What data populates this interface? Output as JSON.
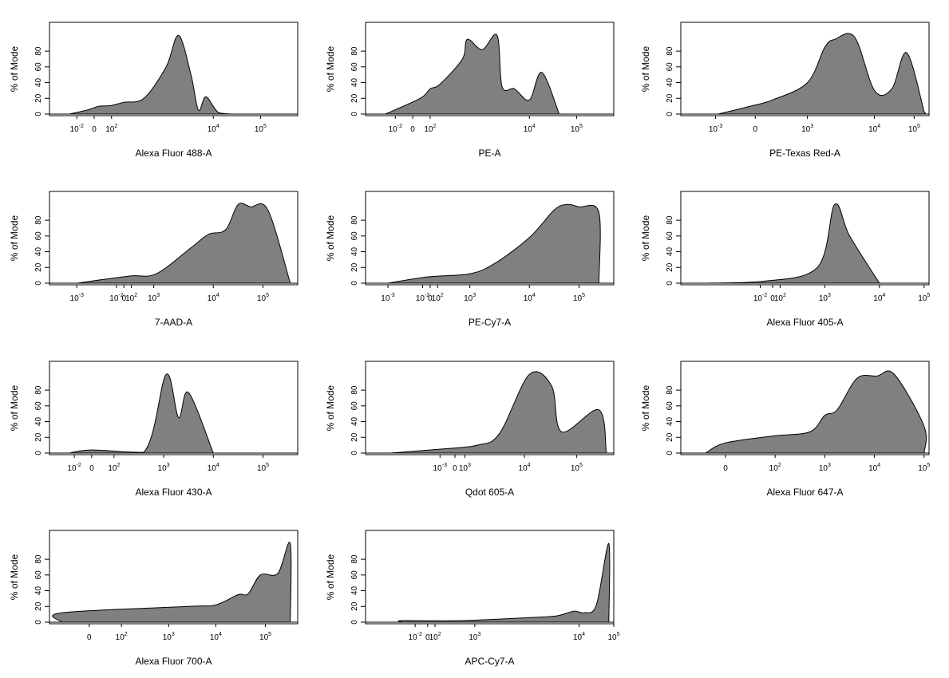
{
  "chart_data": [
    {
      "type": "area",
      "xlabel": "Alexa Fluor 488-A",
      "ylabel": "% of Mode",
      "ylim": [
        0,
        100
      ],
      "yticks": [
        0,
        20,
        40,
        60,
        80
      ],
      "xticks": [
        {
          "label": "10",
          "sup": "-2"
        },
        {
          "label": "0",
          "sup": ""
        },
        {
          "label": "10",
          "sup": "2"
        },
        {
          "label": "10",
          "sup": "4"
        },
        {
          "label": "10",
          "sup": "5"
        }
      ],
      "x": [
        "-1e-2",
        "-5",
        "0",
        "50",
        "100",
        "200",
        "300",
        "500",
        "700",
        "1000",
        "2000",
        "3000",
        "5000",
        "1e4",
        "3e4"
      ],
      "values": [
        0,
        5,
        8,
        10,
        11,
        15,
        20,
        60,
        100,
        50,
        5,
        22,
        2,
        0,
        0
      ]
    },
    {
      "type": "area",
      "xlabel": "PE-A",
      "ylabel": "% of Mode",
      "ylim": [
        0,
        100
      ],
      "yticks": [
        0,
        20,
        40,
        60,
        80
      ],
      "xticks": [
        {
          "label": "10",
          "sup": "-2"
        },
        {
          "label": "0",
          "sup": ""
        },
        {
          "label": "10",
          "sup": "2"
        },
        {
          "label": "10",
          "sup": "4"
        },
        {
          "label": "10",
          "sup": "5"
        }
      ],
      "x": [
        "-1e-2",
        "0",
        "50",
        "100",
        "300",
        "500",
        "1000",
        "2000",
        "3000",
        "5000",
        "1e4",
        "2e4",
        "5e4"
      ],
      "values": [
        0,
        20,
        32,
        38,
        70,
        95,
        82,
        100,
        35,
        32,
        18,
        53,
        0
      ]
    },
    {
      "type": "area",
      "xlabel": "PE-Texas Red-A",
      "ylabel": "% of Mode",
      "ylim": [
        0,
        100
      ],
      "yticks": [
        0,
        20,
        40,
        60,
        80
      ],
      "xticks": [
        {
          "label": "10",
          "sup": "-3"
        },
        {
          "label": "0",
          "sup": ""
        },
        {
          "label": "10",
          "sup": "3"
        },
        {
          "label": "10",
          "sup": "4"
        },
        {
          "label": "10",
          "sup": "5"
        }
      ],
      "x": [
        "-1e-2",
        "0",
        "100",
        "1000",
        "3000",
        "5000",
        "1e4",
        "2e4",
        "5e4",
        "1e5",
        "2e5"
      ],
      "values": [
        0,
        10,
        18,
        40,
        85,
        95,
        98,
        30,
        32,
        78,
        3
      ]
    },
    {
      "type": "area",
      "xlabel": "7-AAD-A",
      "ylabel": "% of Mode",
      "ylim": [
        0,
        100
      ],
      "yticks": [
        0,
        20,
        40,
        60,
        80
      ],
      "xticks": [
        {
          "label": "10",
          "sup": "-3"
        },
        {
          "label": "10",
          "sup": "-2"
        },
        {
          "label": "0",
          "sup": ""
        },
        {
          "label": "10",
          "sup": "2"
        },
        {
          "label": "10",
          "sup": "3"
        },
        {
          "label": "10",
          "sup": "4"
        },
        {
          "label": "10",
          "sup": "5"
        }
      ],
      "x": [
        "-1e-3",
        "0",
        "1000",
        "5000",
        "8000",
        "2e4",
        "3e4",
        "5e4",
        "1.5e5",
        "3e5"
      ],
      "values": [
        0,
        9,
        12,
        45,
        62,
        68,
        100,
        97,
        93,
        0
      ]
    },
    {
      "type": "area",
      "xlabel": "PE-Cy7-A",
      "ylabel": "% of Mode",
      "ylim": [
        0,
        100
      ],
      "yticks": [
        0,
        20,
        40,
        60,
        80
      ],
      "xticks": [
        {
          "label": "10",
          "sup": "-3"
        },
        {
          "label": "10",
          "sup": "-2"
        },
        {
          "label": "0",
          "sup": ""
        },
        {
          "label": "10",
          "sup": "2"
        },
        {
          "label": "10",
          "sup": "3"
        },
        {
          "label": "10",
          "sup": "4"
        },
        {
          "label": "10",
          "sup": "5"
        }
      ],
      "x": [
        "-1e-3",
        "0",
        "1000",
        "5000",
        "1e4",
        "2.5e4",
        "4e4",
        "6e4",
        "2e5"
      ],
      "values": [
        0,
        8,
        12,
        25,
        58,
        93,
        100,
        97,
        90
      ]
    },
    {
      "type": "area",
      "xlabel": "Alexa Fluor 405-A",
      "ylabel": "% of Mode",
      "ylim": [
        0,
        100
      ],
      "yticks": [
        0,
        20,
        40,
        60,
        80
      ],
      "xticks": [
        {
          "label": "10",
          "sup": "-2"
        },
        {
          "label": "0",
          "sup": ""
        },
        {
          "label": "10",
          "sup": "2"
        },
        {
          "label": "10",
          "sup": "3"
        },
        {
          "label": "10",
          "sup": "4"
        },
        {
          "label": "10",
          "sup": "5"
        }
      ],
      "x": [
        "-1e-2",
        "0",
        "1000",
        "2000",
        "2500",
        "5000"
      ],
      "values": [
        0,
        2,
        20,
        100,
        60,
        0
      ]
    },
    {
      "type": "area",
      "xlabel": "Alexa Fluor 430-A",
      "ylabel": "% of Mode",
      "ylim": [
        0,
        100
      ],
      "yticks": [
        0,
        20,
        40,
        60,
        80
      ],
      "xticks": [
        {
          "label": "10",
          "sup": "-2"
        },
        {
          "label": "0",
          "sup": ""
        },
        {
          "label": "10",
          "sup": "2"
        },
        {
          "label": "10",
          "sup": "3"
        },
        {
          "label": "10",
          "sup": "4"
        },
        {
          "label": "10",
          "sup": "5"
        }
      ],
      "x": [
        "-1e-2",
        "0",
        "100",
        "800",
        "1200",
        "2000",
        "5000"
      ],
      "values": [
        0,
        4,
        1,
        100,
        45,
        77,
        0
      ]
    },
    {
      "type": "area",
      "xlabel": "Qdot 605-A",
      "ylabel": "% of Mode",
      "ylim": [
        0,
        100
      ],
      "yticks": [
        0,
        20,
        40,
        60,
        80
      ],
      "xticks": [
        {
          "label": "10",
          "sup": "-3"
        },
        {
          "label": "0",
          "sup": ""
        },
        {
          "label": "10",
          "sup": "3"
        },
        {
          "label": "10",
          "sup": "4"
        },
        {
          "label": "10",
          "sup": "5"
        }
      ],
      "x": [
        "-1e-3",
        "0",
        "1000",
        "5000",
        "1.5e4",
        "3e4",
        "5e4",
        "2e5",
        "3e5"
      ],
      "values": [
        0,
        5,
        10,
        25,
        100,
        85,
        27,
        55,
        0
      ]
    },
    {
      "type": "area",
      "xlabel": "Alexa Fluor 647-A",
      "ylabel": "% of Mode",
      "ylim": [
        0,
        100
      ],
      "yticks": [
        0,
        20,
        40,
        60,
        80
      ],
      "xticks": [
        {
          "label": "0",
          "sup": ""
        },
        {
          "label": "10",
          "sup": "2"
        },
        {
          "label": "10",
          "sup": "3"
        },
        {
          "label": "10",
          "sup": "4"
        },
        {
          "label": "10",
          "sup": "5"
        }
      ],
      "x": [
        "-100",
        "0",
        "300",
        "1000",
        "1500",
        "2500",
        "5000",
        "8000",
        "1.5e4",
        "4e4"
      ],
      "values": [
        0,
        13,
        22,
        27,
        48,
        55,
        95,
        98,
        100,
        34
      ]
    },
    {
      "type": "area",
      "xlabel": "Alexa Fluor 700-A",
      "ylabel": "% of Mode",
      "ylim": [
        0,
        100
      ],
      "yticks": [
        0,
        20,
        40,
        60,
        80
      ],
      "xticks": [
        {
          "label": "0",
          "sup": ""
        },
        {
          "label": "10",
          "sup": "2"
        },
        {
          "label": "10",
          "sup": "3"
        },
        {
          "label": "10",
          "sup": "4"
        },
        {
          "label": "10",
          "sup": "5"
        }
      ],
      "x": [
        "0",
        "3000",
        "1e4",
        "2e4",
        "3e4",
        "6e4",
        "1.2e5",
        "2.5e5"
      ],
      "values": [
        12,
        20,
        22,
        35,
        36,
        60,
        62,
        100
      ]
    },
    {
      "type": "area",
      "xlabel": "APC-Cy7-A",
      "ylabel": "% of Mode",
      "ylim": [
        0,
        100
      ],
      "yticks": [
        0,
        20,
        40,
        60,
        80
      ],
      "xticks": [
        {
          "label": "10",
          "sup": "-2"
        },
        {
          "label": "0",
          "sup": ""
        },
        {
          "label": "10",
          "sup": "2"
        },
        {
          "label": "10",
          "sup": "3"
        },
        {
          "label": "10",
          "sup": "4"
        },
        {
          "label": "10",
          "sup": "5"
        }
      ],
      "x": [
        "0",
        "100",
        "5000",
        "2e4",
        "5e4",
        "1e5",
        "1.8e5",
        "2.5e5"
      ],
      "values": [
        2,
        2,
        6,
        8,
        14,
        12,
        22,
        100
      ]
    }
  ]
}
